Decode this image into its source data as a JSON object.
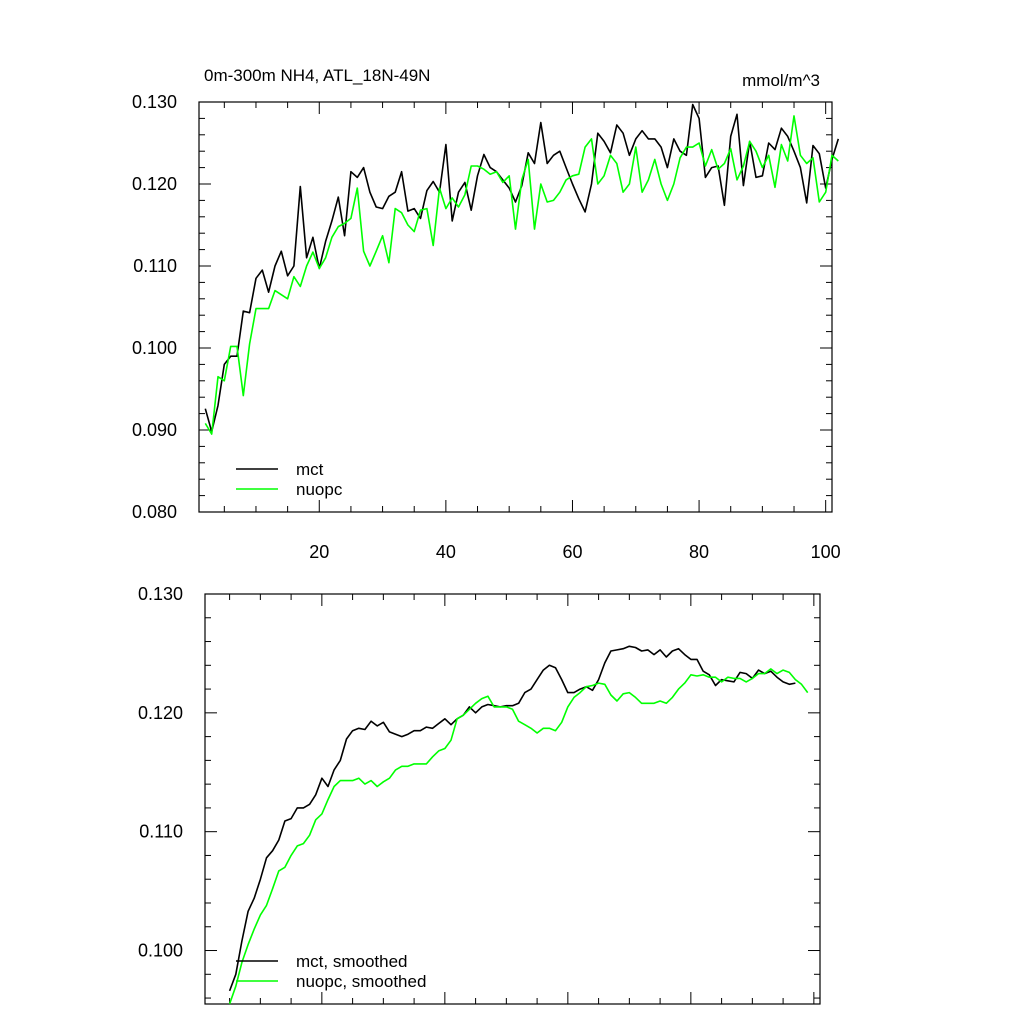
{
  "chart_data": [
    {
      "type": "line",
      "title": "0m-300m NH4, ATL_18N-49N",
      "units": "mmol/m^3",
      "xlim": [
        1,
        101
      ],
      "ylim": [
        0.08,
        0.13
      ],
      "x_ticks": [
        20,
        40,
        60,
        80,
        100
      ],
      "y_ticks": [
        "0.080",
        "0.090",
        "0.100",
        "0.110",
        "0.120",
        "0.130"
      ],
      "legend_position": "bottom-left",
      "x_start": 2,
      "series": [
        {
          "name": "mct",
          "color": "#000000",
          "values": [
            0.0926,
            0.0898,
            0.093,
            0.098,
            0.099,
            0.099,
            0.1045,
            0.1043,
            0.1085,
            0.1095,
            0.1068,
            0.11,
            0.1118,
            0.1088,
            0.11,
            0.1197,
            0.111,
            0.1135,
            0.1097,
            0.113,
            0.1155,
            0.1184,
            0.1137,
            0.1215,
            0.1208,
            0.122,
            0.119,
            0.1172,
            0.117,
            0.1185,
            0.119,
            0.1215,
            0.1167,
            0.117,
            0.1158,
            0.1192,
            0.1203,
            0.119,
            0.1248,
            0.1155,
            0.119,
            0.1202,
            0.1168,
            0.121,
            0.1236,
            0.122,
            0.1215,
            0.1205,
            0.1195,
            0.1178,
            0.1198,
            0.1238,
            0.1225,
            0.1275,
            0.1225,
            0.1235,
            0.124,
            0.122,
            0.12,
            0.1182,
            0.1166,
            0.12,
            0.1262,
            0.1252,
            0.1238,
            0.1272,
            0.1262,
            0.1235,
            0.1255,
            0.1265,
            0.1255,
            0.1255,
            0.1245,
            0.122,
            0.1255,
            0.124,
            0.1235,
            0.1297,
            0.128,
            0.1208,
            0.122,
            0.1222,
            0.1174,
            0.1258,
            0.1285,
            0.1198,
            0.1252,
            0.1208,
            0.121,
            0.125,
            0.1242,
            0.1268,
            0.1258,
            0.124,
            0.122,
            0.1177,
            0.1247,
            0.1237,
            0.1195,
            0.123,
            0.1255
          ]
        },
        {
          "name": "nuopc",
          "color": "#00ff00",
          "values": [
            0.0908,
            0.0895,
            0.0965,
            0.096,
            0.1002,
            0.1002,
            0.0942,
            0.1005,
            0.1048,
            0.1048,
            0.1048,
            0.107,
            0.1065,
            0.106,
            0.1087,
            0.1075,
            0.11,
            0.1117,
            0.1097,
            0.111,
            0.1135,
            0.1148,
            0.1152,
            0.1158,
            0.1195,
            0.1118,
            0.11,
            0.1118,
            0.1137,
            0.1104,
            0.117,
            0.1165,
            0.115,
            0.1142,
            0.1168,
            0.117,
            0.1125,
            0.1195,
            0.117,
            0.1183,
            0.1172,
            0.1187,
            0.1222,
            0.1222,
            0.1218,
            0.1212,
            0.1215,
            0.1202,
            0.121,
            0.1145,
            0.1205,
            0.123,
            0.1145,
            0.12,
            0.1178,
            0.118,
            0.119,
            0.1205,
            0.121,
            0.1212,
            0.1245,
            0.1255,
            0.12,
            0.121,
            0.1235,
            0.1225,
            0.119,
            0.12,
            0.1245,
            0.119,
            0.1205,
            0.123,
            0.12,
            0.118,
            0.12,
            0.1232,
            0.1245,
            0.1245,
            0.125,
            0.1222,
            0.1242,
            0.1218,
            0.1225,
            0.1243,
            0.1205,
            0.1222,
            0.1252,
            0.124,
            0.122,
            0.1235,
            0.1196,
            0.1248,
            0.1228,
            0.1283,
            0.1235,
            0.1225,
            0.1232,
            0.1178,
            0.119,
            0.1235,
            0.1228
          ]
        }
      ]
    },
    {
      "type": "line",
      "xlim": [
        1,
        101
      ],
      "ylim": [
        0.0955,
        0.13
      ],
      "x_tick_marks": [
        20,
        40,
        60,
        80,
        100
      ],
      "y_ticks": [
        "0.100",
        "0.110",
        "0.120",
        "0.130"
      ],
      "legend_position": "bottom-left",
      "x_start": 5,
      "series": [
        {
          "name": "mct, smoothed",
          "color": "#000000",
          "values": [
            0.0966,
            0.098,
            0.1008,
            0.1033,
            0.1044,
            0.106,
            0.1078,
            0.1084,
            0.1093,
            0.1109,
            0.1111,
            0.112,
            0.112,
            0.1123,
            0.1131,
            0.1145,
            0.1138,
            0.1152,
            0.116,
            0.1178,
            0.1185,
            0.1187,
            0.1186,
            0.1193,
            0.1189,
            0.1192,
            0.1184,
            0.1182,
            0.118,
            0.1182,
            0.1185,
            0.1185,
            0.1188,
            0.1187,
            0.1191,
            0.1195,
            0.119,
            0.1195,
            0.1198,
            0.1205,
            0.12,
            0.1205,
            0.1207,
            0.1206,
            0.1205,
            0.1206,
            0.1206,
            0.1208,
            0.1217,
            0.122,
            0.1228,
            0.1236,
            0.124,
            0.1238,
            0.1228,
            0.1217,
            0.1217,
            0.122,
            0.1222,
            0.1219,
            0.1228,
            0.1242,
            0.1252,
            0.1253,
            0.1254,
            0.1256,
            0.1255,
            0.1252,
            0.1253,
            0.1249,
            0.1253,
            0.1247,
            0.1252,
            0.1254,
            0.1249,
            0.1245,
            0.1245,
            0.1235,
            0.1232,
            0.1223,
            0.1228,
            0.1227,
            0.1226,
            0.1234,
            0.1233,
            0.1229,
            0.1236,
            0.1233,
            0.1235,
            0.123,
            0.1226,
            0.1224,
            0.1225
          ]
        },
        {
          "name": "nuopc, smoothed",
          "color": "#00ff00",
          "values": [
            0.0955,
            0.097,
            0.099,
            0.1005,
            0.1018,
            0.103,
            0.1038,
            0.1052,
            0.1067,
            0.107,
            0.108,
            0.1088,
            0.109,
            0.1097,
            0.111,
            0.1115,
            0.1127,
            0.1138,
            0.1143,
            0.1143,
            0.1143,
            0.1145,
            0.114,
            0.1143,
            0.1138,
            0.1142,
            0.1145,
            0.1152,
            0.1155,
            0.1155,
            0.1157,
            0.1157,
            0.1157,
            0.1163,
            0.1168,
            0.117,
            0.1177,
            0.1195,
            0.1198,
            0.1203,
            0.1208,
            0.1212,
            0.1214,
            0.1205,
            0.1205,
            0.1205,
            0.1203,
            0.1193,
            0.119,
            0.1187,
            0.1183,
            0.1187,
            0.1187,
            0.1185,
            0.1192,
            0.1205,
            0.1213,
            0.1217,
            0.1222,
            0.1223,
            0.1225,
            0.1224,
            0.1215,
            0.121,
            0.1216,
            0.1217,
            0.1213,
            0.1208,
            0.1208,
            0.1208,
            0.121,
            0.1208,
            0.1213,
            0.122,
            0.1225,
            0.1232,
            0.1231,
            0.1232,
            0.123,
            0.123,
            0.1226,
            0.123,
            0.1229,
            0.1229,
            0.1226,
            0.1229,
            0.1233,
            0.1233,
            0.1237,
            0.1233,
            0.1236,
            0.1234,
            0.1228,
            0.1224,
            0.1217
          ]
        }
      ]
    }
  ]
}
